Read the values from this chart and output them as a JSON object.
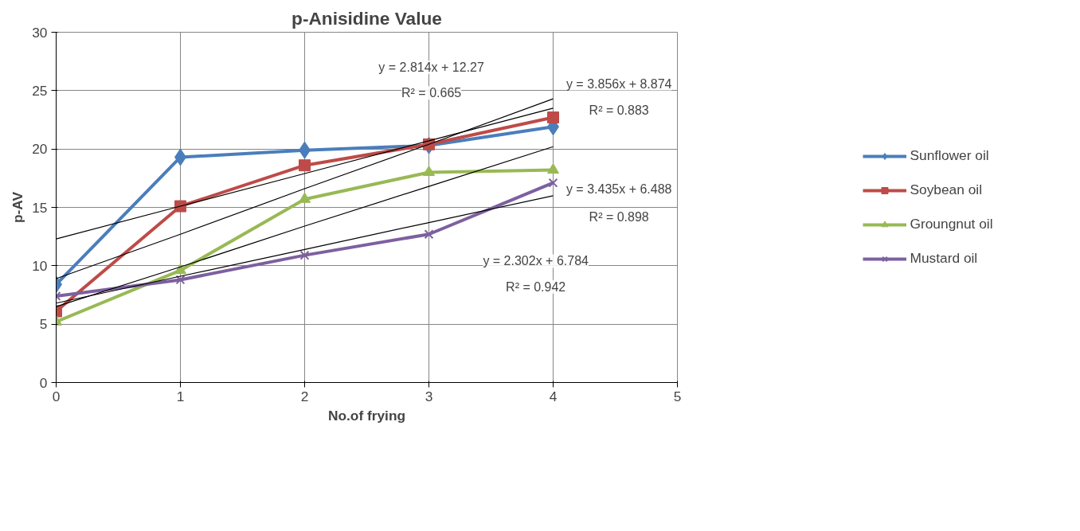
{
  "chart_data": {
    "type": "line",
    "title": "p-Anisidine Value",
    "xlabel": "No.of frying",
    "ylabel": "p-AV",
    "x": [
      0,
      1,
      2,
      3,
      4
    ],
    "series": [
      {
        "name": "Sunflower oil",
        "color": "#4a7ebb",
        "marker": "diamond",
        "values": [
          8.4,
          19.3,
          19.9,
          20.3,
          21.9
        ]
      },
      {
        "name": "Soybean oil",
        "color": "#be4b48",
        "marker": "square",
        "values": [
          6.1,
          15.1,
          18.6,
          20.4,
          22.7
        ]
      },
      {
        "name": "Groungnut oil",
        "color": "#98b954",
        "marker": "triangle",
        "values": [
          5.2,
          9.6,
          15.7,
          18.0,
          18.2
        ]
      },
      {
        "name": "Mustard oil",
        "color": "#7d60a0",
        "marker": "cross",
        "values": [
          7.4,
          8.8,
          10.9,
          12.7,
          17.1
        ]
      },
      {
        "color": "#000000",
        "marker": "none",
        "values": [
          12.3,
          15.1,
          17.9,
          20.7,
          23.5
        ]
      },
      {
        "color": "#000000",
        "marker": "none",
        "values": [
          8.9,
          12.7,
          16.6,
          20.4,
          24.3
        ]
      },
      {
        "color": "#000000",
        "marker": "none",
        "values": [
          6.5,
          9.9,
          13.4,
          16.8,
          20.2
        ]
      },
      {
        "color": "#000000",
        "marker": "none",
        "values": [
          6.8,
          9.1,
          11.4,
          13.7,
          16.0
        ]
      }
    ],
    "annotations": [
      "y = 2.814x + 12.27",
      "R² = 0.665",
      "y = 3.856x + 8.874",
      "R² = 0.883",
      "y = 3.435x + 6.488",
      "R² = 0.898",
      "y = 2.302x + 6.784",
      "R² = 0.942"
    ],
    "xlim": [
      0,
      5
    ],
    "xticks": [
      0,
      1,
      2,
      3,
      4,
      5
    ],
    "ylim": [
      0,
      30
    ],
    "yticks": [
      0,
      5,
      10,
      15,
      20,
      25,
      30
    ],
    "grid": true,
    "legend": "right"
  }
}
